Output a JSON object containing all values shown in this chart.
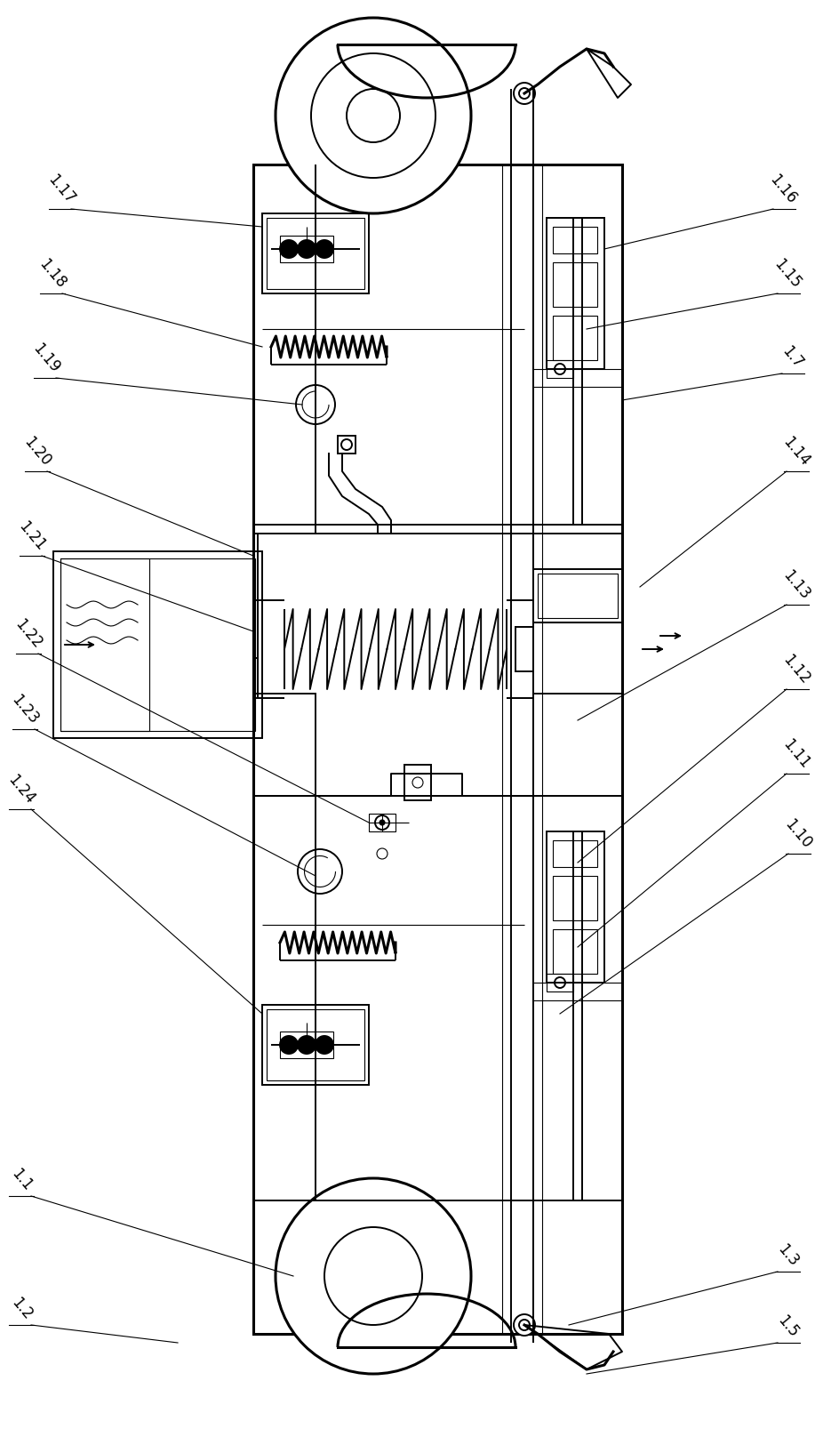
{
  "background_color": "#ffffff",
  "line_color": "#000000",
  "fig_width": 9.26,
  "fig_height": 16.07,
  "dpi": 100,
  "lw_thick": 2.2,
  "lw_main": 1.4,
  "lw_thin": 0.8,
  "left_labels": [
    [
      "1.17",
      55,
      235
    ],
    [
      "1.18",
      45,
      330
    ],
    [
      "1.19",
      38,
      425
    ],
    [
      "1.20",
      28,
      530
    ],
    [
      "1.21",
      22,
      625
    ],
    [
      "1.22",
      18,
      735
    ],
    [
      "1.23",
      14,
      820
    ],
    [
      "1.24",
      10,
      910
    ],
    [
      "1.1",
      10,
      1345
    ],
    [
      "1.2",
      10,
      1490
    ]
  ],
  "right_labels": [
    [
      "1.16",
      895,
      235
    ],
    [
      "1.15",
      900,
      330
    ],
    [
      "1.7",
      905,
      420
    ],
    [
      "1.14",
      910,
      530
    ],
    [
      "1.13",
      910,
      680
    ],
    [
      "1.12",
      910,
      775
    ],
    [
      "1.11",
      910,
      870
    ],
    [
      "1.10",
      912,
      960
    ],
    [
      "1.3",
      900,
      1430
    ],
    [
      "1.5",
      900,
      1510
    ]
  ]
}
